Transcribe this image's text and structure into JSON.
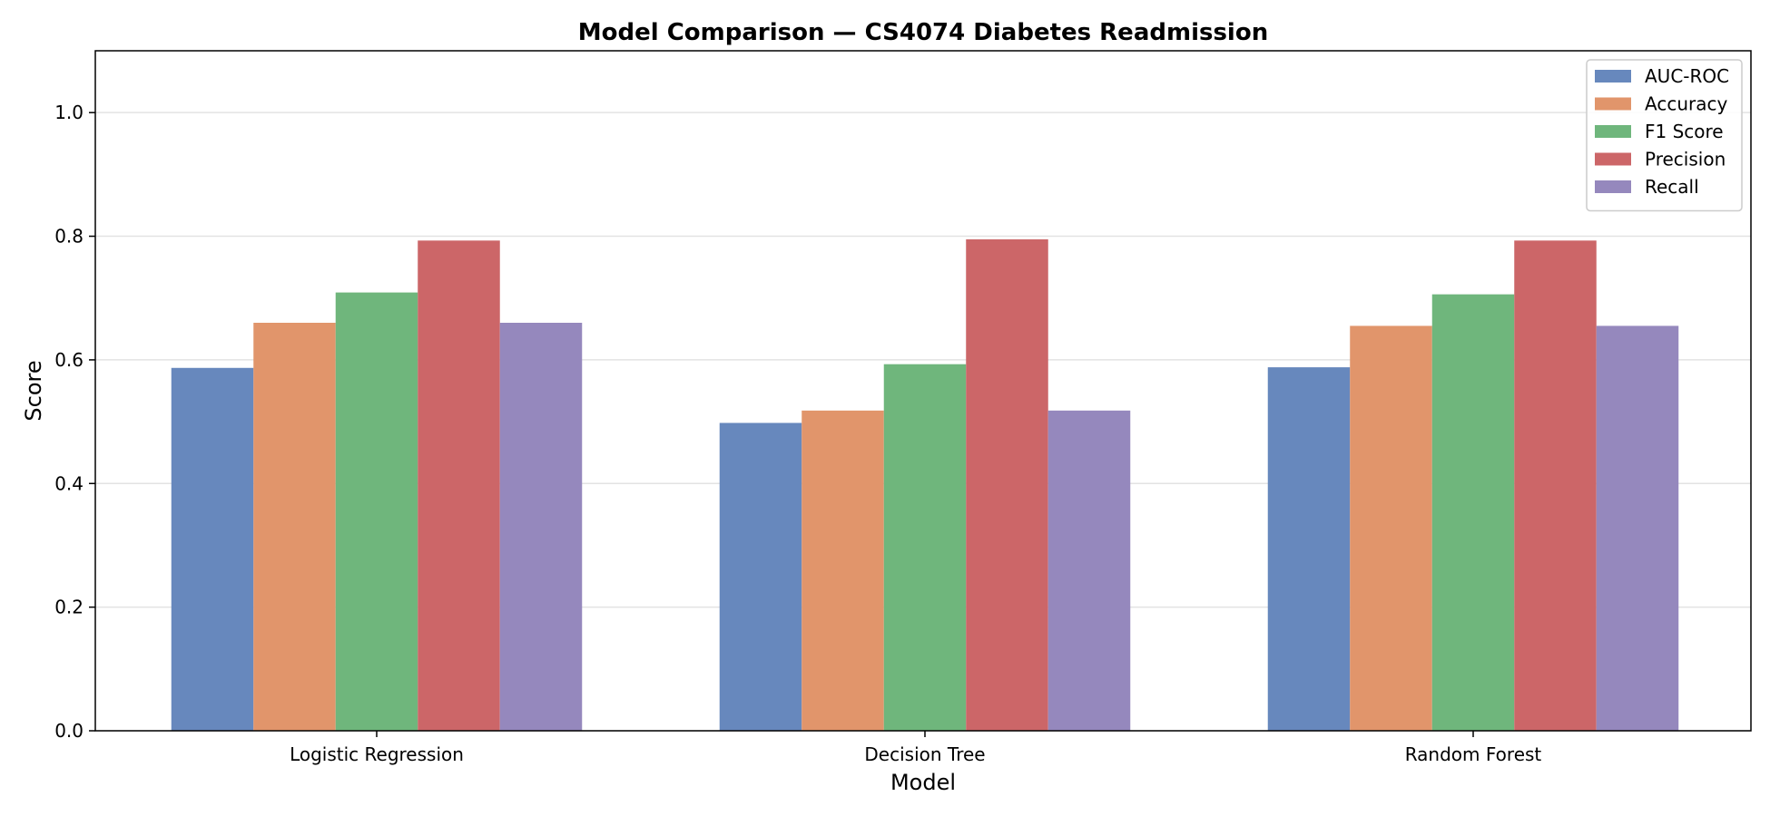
{
  "chart_data": {
    "type": "bar",
    "title": "Model Comparison — CS4074 Diabetes Readmission",
    "xlabel": "Model",
    "ylabel": "Score",
    "categories": [
      "Logistic Regression",
      "Decision Tree",
      "Random Forest"
    ],
    "series": [
      {
        "name": "AUC-ROC",
        "color": "#6788BD",
        "values": [
          0.587,
          0.498,
          0.588
        ]
      },
      {
        "name": "Accuracy",
        "color": "#E1956B",
        "values": [
          0.66,
          0.518,
          0.655
        ]
      },
      {
        "name": "F1 Score",
        "color": "#6FB67C",
        "values": [
          0.709,
          0.593,
          0.706
        ]
      },
      {
        "name": "Precision",
        "color": "#CC6668",
        "values": [
          0.793,
          0.795,
          0.793
        ]
      },
      {
        "name": "Recall",
        "color": "#9588BD",
        "values": [
          0.66,
          0.518,
          0.655
        ]
      }
    ],
    "ylim": [
      0,
      1.1
    ],
    "yticks": [
      "0.0",
      "0.2",
      "0.4",
      "0.6",
      "0.8",
      "1.0"
    ],
    "grid": "horizontal",
    "legend": "top-right"
  }
}
